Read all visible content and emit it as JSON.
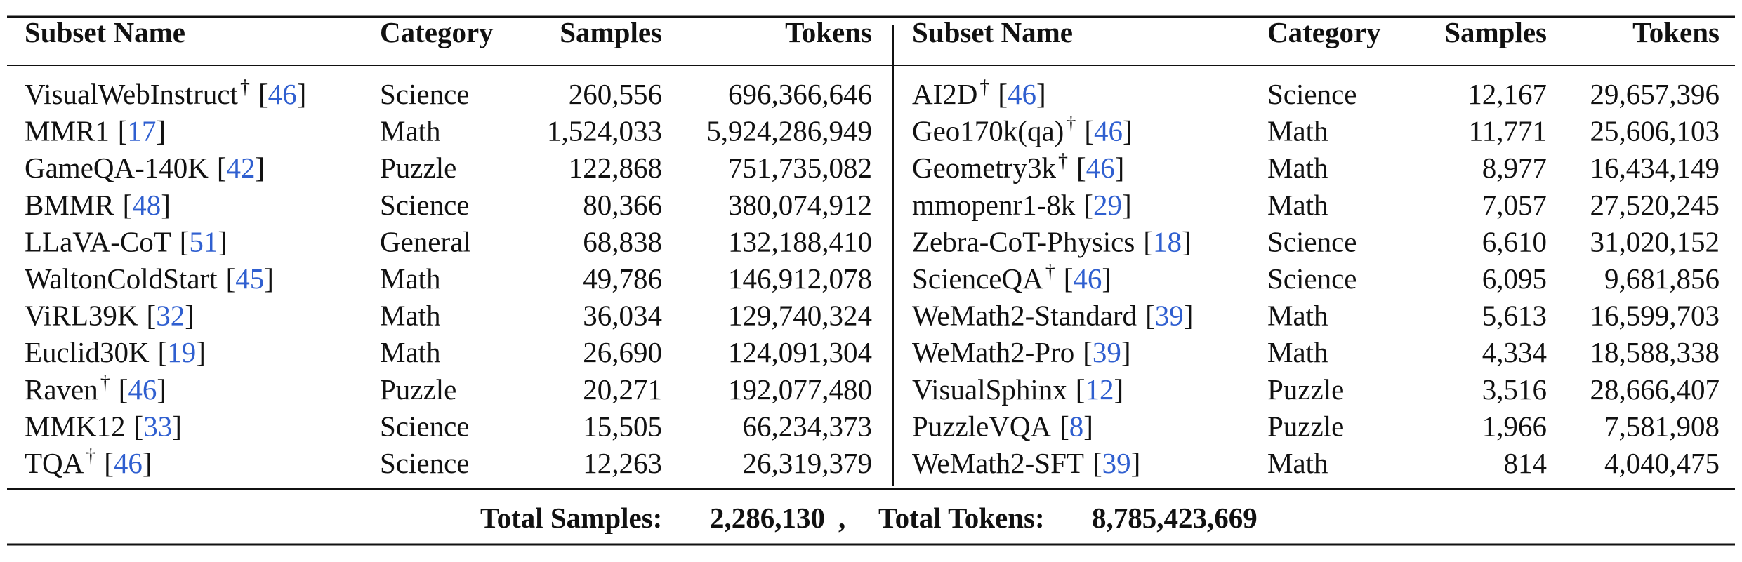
{
  "table": {
    "headers": [
      "Subset Name",
      "Category",
      "Samples",
      "Tokens",
      "Subset Name",
      "Category",
      "Samples",
      "Tokens"
    ],
    "left_rows": [
      {
        "name": "VisualWebInstruct",
        "mark": "†",
        "ref": "[46]",
        "category": "Science",
        "samples": "260,556",
        "tokens": "696,366,646"
      },
      {
        "name": "MMR1",
        "ref": "[17]",
        "category": "Math",
        "samples": "1,524,033",
        "tokens": "5,924,286,949"
      },
      {
        "name": "GameQA-140K",
        "ref": "[42]",
        "category": "Puzzle",
        "samples": "122,868",
        "tokens": "751,735,082"
      },
      {
        "name": "BMMR",
        "ref": "[48]",
        "category": "Science",
        "samples": "80,366",
        "tokens": "380,074,912"
      },
      {
        "name": "LLaVA-CoT",
        "ref": "[51]",
        "category": "General",
        "samples": "68,838",
        "tokens": "132,188,410"
      },
      {
        "name": "WaltonColdStart",
        "ref": "[45]",
        "category": "Math",
        "samples": "49,786",
        "tokens": "146,912,078"
      },
      {
        "name": "ViRL39K",
        "ref": "[32]",
        "category": "Math",
        "samples": "36,034",
        "tokens": "129,740,324"
      },
      {
        "name": "Euclid30K",
        "ref": "[19]",
        "category": "Math",
        "samples": "26,690",
        "tokens": "124,091,304"
      },
      {
        "name": "Raven",
        "mark": "†",
        "ref": "[46]",
        "category": "Puzzle",
        "samples": "20,271",
        "tokens": "192,077,480"
      },
      {
        "name": "MMK12",
        "ref": "[33]",
        "category": "Science",
        "samples": "15,505",
        "tokens": "66,234,373"
      },
      {
        "name": "TQA",
        "mark": "†",
        "ref": "[46]",
        "category": "Science",
        "samples": "12,263",
        "tokens": "26,319,379"
      }
    ],
    "right_rows": [
      {
        "name": "AI2D",
        "mark": "†",
        "ref": "[46]",
        "category": "Science",
        "samples": "12,167",
        "tokens": "29,657,396"
      },
      {
        "name": "Geo170k(qa)",
        "mark": "†",
        "ref": "[46]",
        "category": "Math",
        "samples": "11,771",
        "tokens": "25,606,103"
      },
      {
        "name": "Geometry3k",
        "mark": "†",
        "ref": "[46]",
        "category": "Math",
        "samples": "8,977",
        "tokens": "16,434,149"
      },
      {
        "name": "mmopenr1-8k",
        "ref": "[29]",
        "category": "Math",
        "samples": "7,057",
        "tokens": "27,520,245"
      },
      {
        "name": "Zebra-CoT-Physics",
        "ref": "[18]",
        "category": "Science",
        "samples": "6,610",
        "tokens": "31,020,152"
      },
      {
        "name": "ScienceQA",
        "mark": "†",
        "ref": "[46]",
        "category": "Science",
        "samples": "6,095",
        "tokens": "9,681,856"
      },
      {
        "name": "WeMath2-Standard",
        "ref": "[39]",
        "category": "Math",
        "samples": "5,613",
        "tokens": "16,599,703"
      },
      {
        "name": "WeMath2-Pro",
        "ref": "[39]",
        "category": "Math",
        "samples": "4,334",
        "tokens": "18,588,338"
      },
      {
        "name": "VisualSphinx",
        "ref": "[12]",
        "category": "Puzzle",
        "samples": "3,516",
        "tokens": "28,666,407"
      },
      {
        "name": "PuzzleVQA",
        "ref": "[8]",
        "category": "Puzzle",
        "samples": "1,966",
        "tokens": "7,581,908"
      },
      {
        "name": "WeMath2-SFT",
        "ref": "[39]",
        "category": "Math",
        "samples": "814",
        "tokens": "4,040,475"
      }
    ],
    "total": {
      "samples_label": "Total Samples:",
      "samples": "2,286,130",
      "separator": ",",
      "tokens_label": "Total Tokens:",
      "tokens": "8,785,423,669"
    }
  }
}
